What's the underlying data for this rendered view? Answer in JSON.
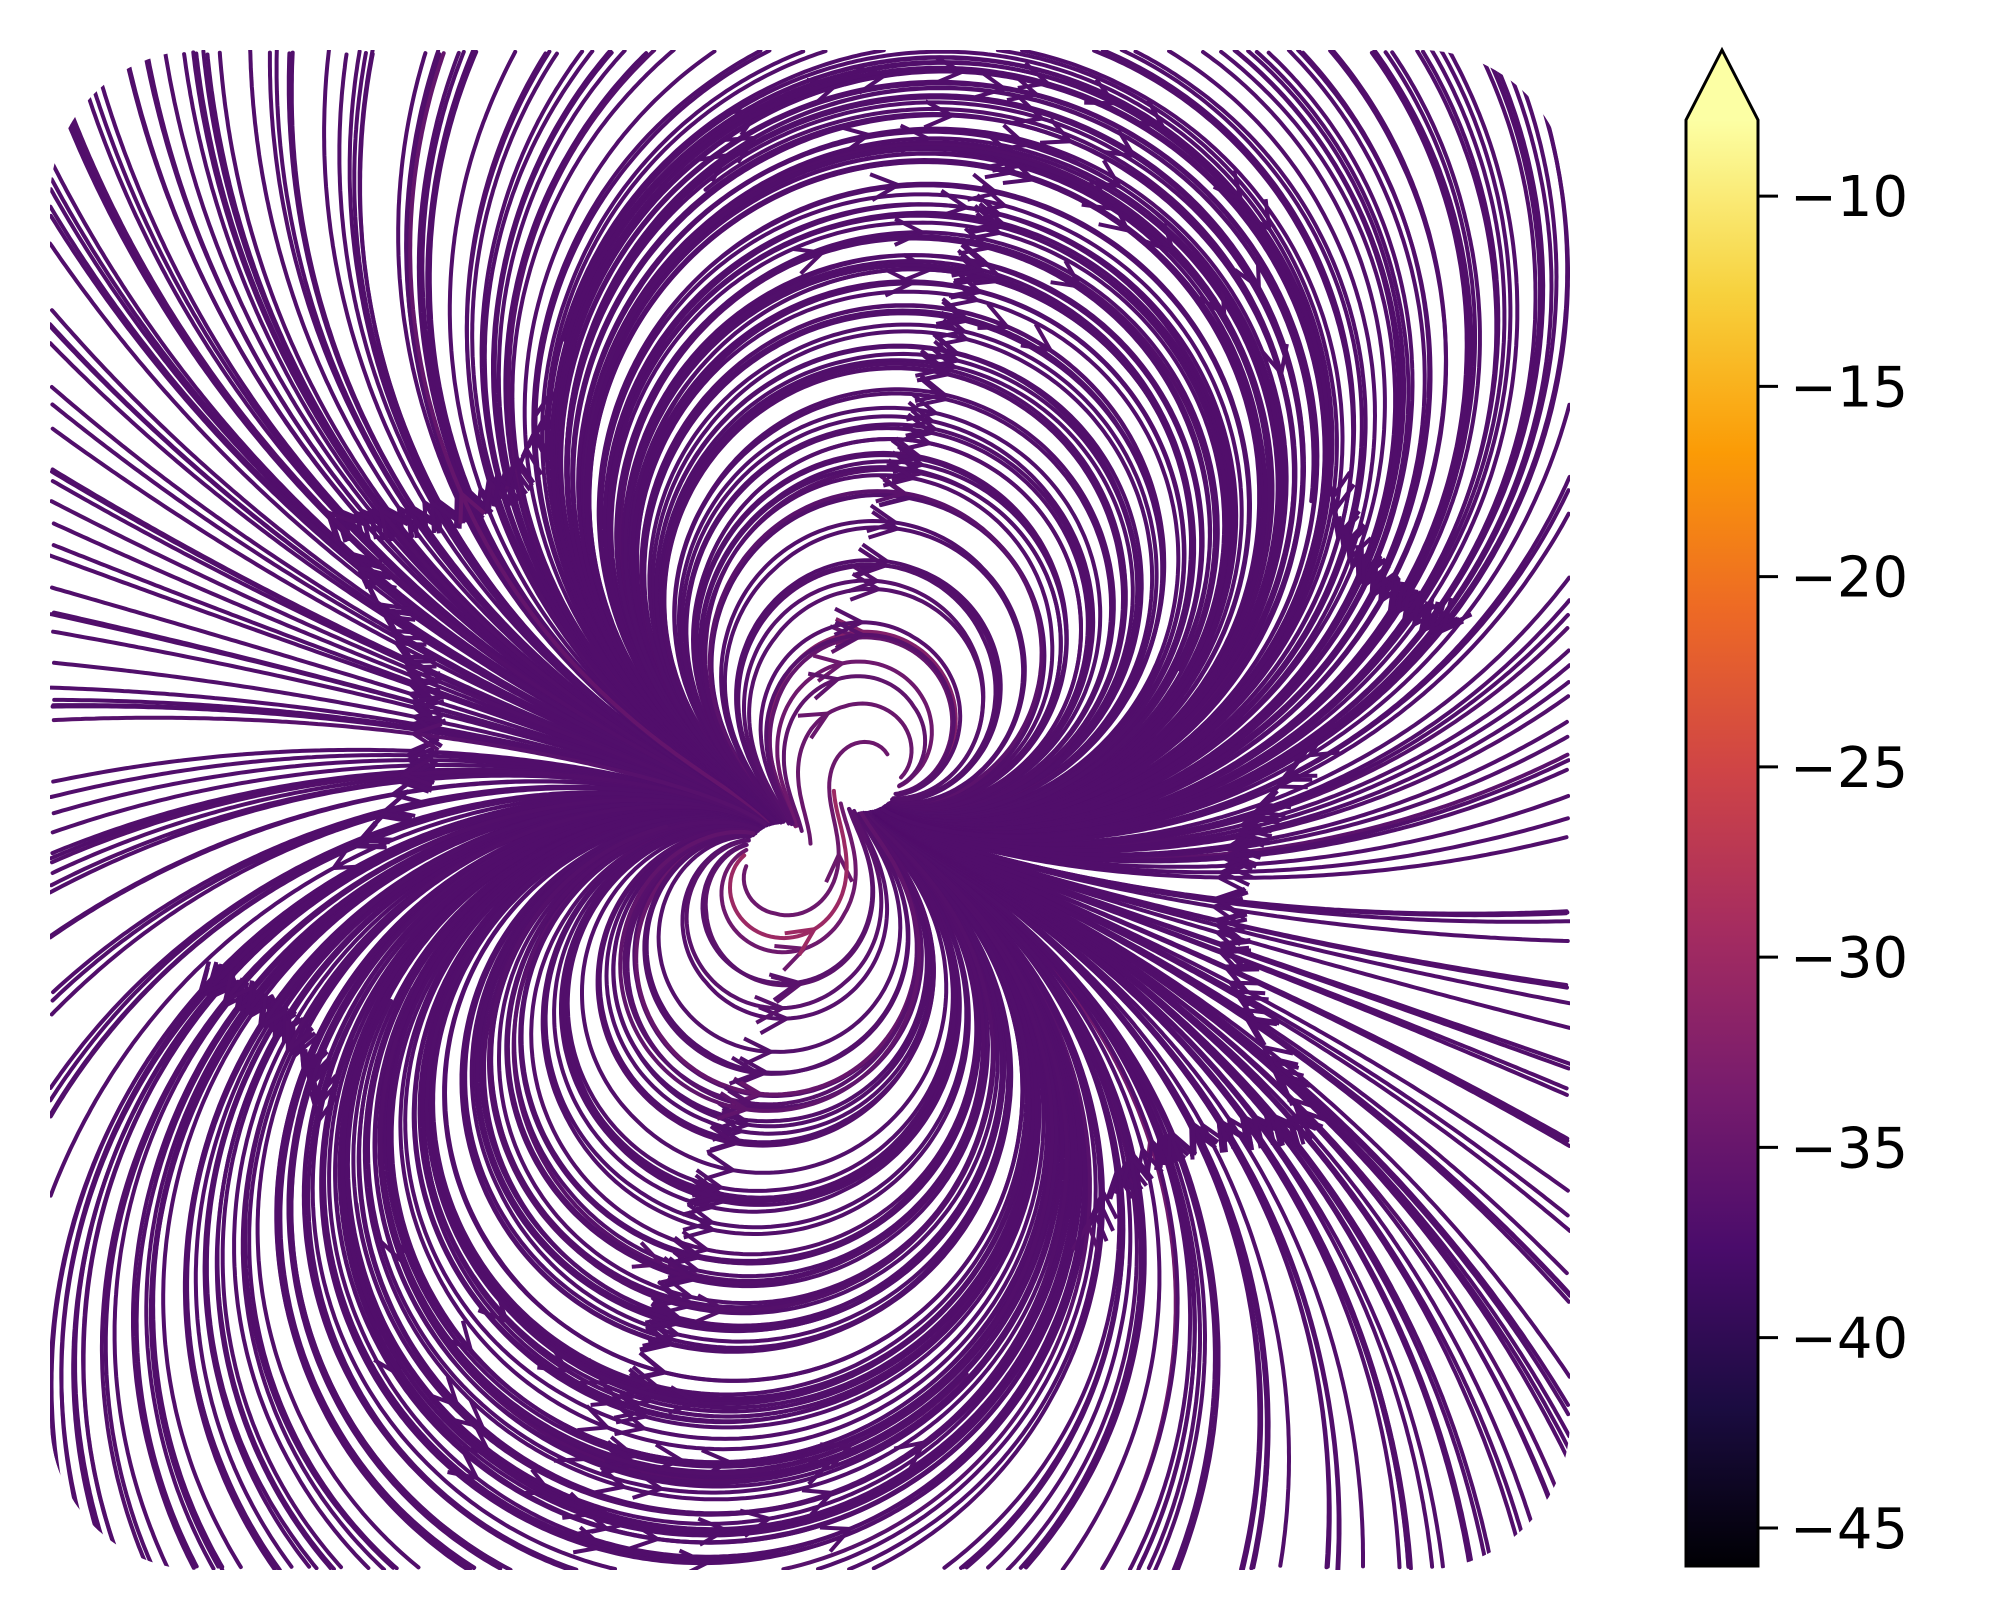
{
  "chart_data": {
    "type": "streamplot",
    "description_visible": "streamlines of a vector field around two off-center sources, colored by magnitude",
    "axes_visible": false,
    "grid": false,
    "x_range": [
      -3,
      3
    ],
    "y_range": [
      -3,
      3
    ],
    "colormap": "inferno",
    "colorbar": {
      "extend": "max",
      "range": [
        -46,
        -8
      ],
      "ticks": [
        -10,
        -15,
        -20,
        -25,
        -30,
        -35,
        -40,
        -45
      ],
      "tick_labels": [
        "−10",
        "−15",
        "−20",
        "−25",
        "−30",
        "−35",
        "−40",
        "−45"
      ]
    },
    "line_color_range": {
      "far": -37,
      "mid": -30,
      "near": -24,
      "peak": -8
    }
  }
}
